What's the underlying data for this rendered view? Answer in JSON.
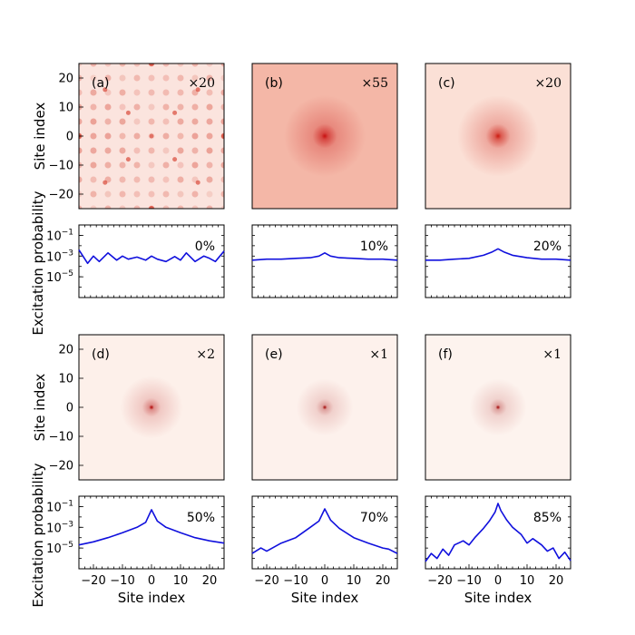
{
  "figure": {
    "x_label": "Site index",
    "y_label_heatmap": "Site index",
    "y_label_line": "Excitation probability"
  },
  "chart_data": [
    {
      "panel": "a",
      "type": "heatmap",
      "label": "(a)",
      "scale_label": "×20",
      "x_range": [
        -25,
        25
      ],
      "y_range": [
        -25,
        25
      ],
      "x_ticks": [],
      "y_ticks": [
        -20,
        -10,
        0,
        10,
        20
      ],
      "pattern": "lattice",
      "peak_strength": 0.15,
      "background": "#fbe4de",
      "accent": "#d84a3a"
    },
    {
      "panel": "b",
      "type": "heatmap",
      "label": "(b)",
      "scale_label": "×55",
      "x_range": [
        -25,
        25
      ],
      "y_range": [
        -25,
        25
      ],
      "x_ticks": [],
      "y_ticks": [],
      "pattern": "central_peak",
      "peak_strength": 0.9,
      "background": "#f4b7a7",
      "accent": "#c81010"
    },
    {
      "panel": "c",
      "type": "heatmap",
      "label": "(c)",
      "scale_label": "×20",
      "x_range": [
        -25,
        25
      ],
      "y_range": [
        -25,
        25
      ],
      "x_ticks": [],
      "y_ticks": [],
      "pattern": "central_peak",
      "peak_strength": 0.9,
      "background": "#fbe0d6",
      "accent": "#cc1a10"
    },
    {
      "panel": "a",
      "type": "line",
      "annotation": "0%",
      "y_scale": "log",
      "y_range": [
        1e-07,
        1
      ],
      "y_tick_labels": [
        "10^-1",
        "10^-3",
        "10^-5"
      ],
      "x": [
        -25,
        -22,
        -20,
        -18,
        -15,
        -12,
        -10,
        -8,
        -5,
        -2,
        0,
        2,
        5,
        8,
        10,
        12,
        15,
        18,
        20,
        22,
        25
      ],
      "y": [
        0.004,
        0.0002,
        0.001,
        0.0003,
        0.002,
        0.0004,
        0.001,
        0.0005,
        0.0008,
        0.0004,
        0.001,
        0.0005,
        0.0003,
        0.0009,
        0.0004,
        0.002,
        0.0003,
        0.001,
        0.0006,
        0.0003,
        0.003
      ]
    },
    {
      "panel": "b",
      "type": "line",
      "annotation": "10%",
      "y_scale": "log",
      "y_range": [
        1e-07,
        1
      ],
      "y_tick_labels": [],
      "x": [
        -25,
        -20,
        -15,
        -10,
        -5,
        -2,
        0,
        2,
        5,
        10,
        15,
        20,
        25
      ],
      "y": [
        0.0004,
        0.0005,
        0.0005,
        0.0006,
        0.0007,
        0.001,
        0.002,
        0.001,
        0.0007,
        0.0006,
        0.0005,
        0.0005,
        0.0004
      ]
    },
    {
      "panel": "c",
      "type": "line",
      "annotation": "20%",
      "y_scale": "log",
      "y_range": [
        1e-07,
        1
      ],
      "y_tick_labels": [],
      "x": [
        -25,
        -20,
        -15,
        -10,
        -5,
        -2,
        0,
        2,
        5,
        10,
        15,
        20,
        25
      ],
      "y": [
        0.0004,
        0.0004,
        0.0005,
        0.0006,
        0.0012,
        0.0025,
        0.005,
        0.0025,
        0.0012,
        0.0007,
        0.0005,
        0.0005,
        0.0004
      ]
    },
    {
      "panel": "d",
      "type": "heatmap",
      "label": "(d)",
      "scale_label": "×2",
      "x_range": [
        -25,
        25
      ],
      "y_range": [
        -25,
        25
      ],
      "x_ticks": [],
      "y_ticks": [
        -20,
        -10,
        0,
        10,
        20
      ],
      "pattern": "central_peak",
      "peak_strength": 0.55,
      "background": "#fdf0ea",
      "accent": "#b00000"
    },
    {
      "panel": "e",
      "type": "heatmap",
      "label": "(e)",
      "scale_label": "×1",
      "x_range": [
        -25,
        25
      ],
      "y_range": [
        -25,
        25
      ],
      "x_ticks": [],
      "y_ticks": [],
      "pattern": "central_peak",
      "peak_strength": 0.45,
      "background": "#fdf1ec",
      "accent": "#a00000"
    },
    {
      "panel": "f",
      "type": "heatmap",
      "label": "(f)",
      "scale_label": "×1",
      "x_range": [
        -25,
        25
      ],
      "y_range": [
        -25,
        25
      ],
      "x_ticks": [],
      "y_ticks": [],
      "pattern": "central_peak",
      "peak_strength": 0.45,
      "background": "#fdf3ee",
      "accent": "#a00000"
    },
    {
      "panel": "d",
      "type": "line",
      "annotation": "50%",
      "y_scale": "log",
      "y_range": [
        1e-07,
        1
      ],
      "y_tick_labels": [
        "10^-1",
        "10^-3",
        "10^-5"
      ],
      "x_ticks": [
        -20,
        -10,
        0,
        10,
        20
      ],
      "x": [
        -25,
        -20,
        -15,
        -10,
        -5,
        -2,
        0,
        2,
        5,
        10,
        15,
        20,
        25
      ],
      "y": [
        2e-05,
        4e-05,
        0.0001,
        0.0003,
        0.001,
        0.003,
        0.05,
        0.004,
        0.001,
        0.0003,
        0.0001,
        5e-05,
        3e-05
      ]
    },
    {
      "panel": "e",
      "type": "line",
      "annotation": "70%",
      "y_scale": "log",
      "y_range": [
        1e-07,
        1
      ],
      "y_tick_labels": [],
      "x_ticks": [
        -20,
        -10,
        0,
        10,
        20
      ],
      "x": [
        -25,
        -22,
        -20,
        -15,
        -10,
        -5,
        -2,
        0,
        2,
        5,
        10,
        15,
        20,
        22,
        25
      ],
      "y": [
        3e-06,
        1e-05,
        5e-06,
        3e-05,
        0.0001,
        0.001,
        0.004,
        0.06,
        0.005,
        0.0008,
        0.0001,
        3e-05,
        1e-05,
        8e-06,
        3e-06
      ]
    },
    {
      "panel": "f",
      "type": "line",
      "annotation": "85%",
      "y_scale": "log",
      "y_range": [
        1e-07,
        1
      ],
      "y_tick_labels": [],
      "x_ticks": [
        -20,
        -10,
        0,
        10,
        20
      ],
      "x": [
        -25,
        -23,
        -21,
        -19,
        -17,
        -15,
        -12,
        -10,
        -8,
        -5,
        -3,
        -1,
        0,
        1,
        3,
        5,
        8,
        10,
        12,
        15,
        17,
        19,
        21,
        23,
        25
      ],
      "y": [
        5e-07,
        3e-06,
        1e-06,
        8e-06,
        2e-06,
        2e-05,
        5e-05,
        2e-05,
        0.0001,
        0.0008,
        0.004,
        0.03,
        0.2,
        0.04,
        0.005,
        0.001,
        0.0002,
        3e-05,
        8e-05,
        2e-05,
        5e-06,
        1e-05,
        1e-06,
        4e-06,
        6e-07
      ]
    }
  ]
}
